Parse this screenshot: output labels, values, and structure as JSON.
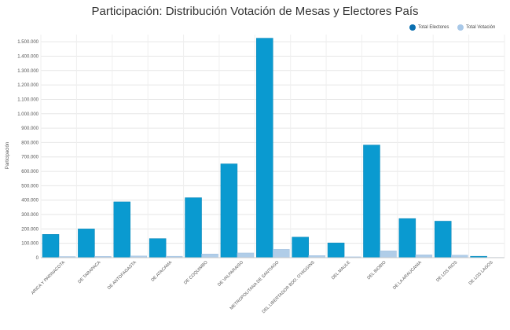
{
  "chart_data": {
    "type": "bar",
    "title": "Participación: Distribución Votación de Mesas y Electores País",
    "xlabel": "",
    "ylabel": "Participación",
    "ylim": [
      0,
      1550000
    ],
    "yticks": [
      0,
      100000,
      200000,
      300000,
      400000,
      500000,
      600000,
      700000,
      800000,
      900000,
      1000000,
      1100000,
      1200000,
      1300000,
      1400000,
      1500000
    ],
    "ytick_labels": [
      "0",
      "100.000",
      "200.000",
      "300.000",
      "400.000",
      "500.000",
      "600.000",
      "700.000",
      "800.000",
      "900.000",
      "1.000.000",
      "1.100.000",
      "1.200.000",
      "1.300.000",
      "1.400.000",
      "1.500.000"
    ],
    "legend_position": "top-right",
    "categories": [
      "ARICA Y PARINACOTA",
      "DE TARAPACA",
      "DE ANTOFAGASTA",
      "DE ATACAMA",
      "DE COQUIMBO",
      "DE VALPARAISO",
      "METROPOLITANA DE SANTIAGO",
      "DEL LIBERTADOR BDO. O'HIGGINS",
      "DEL MAULE",
      "DEL BIOBIO",
      "DE LA ARAUCANIA",
      "DE LOS RIOS",
      "DE LOS LAGOS"
    ],
    "series": [
      {
        "name": "Total Electores",
        "color": "#0a9ad0",
        "values": [
          162000,
          200000,
          388000,
          133000,
          417000,
          652000,
          1525000,
          143000,
          103000,
          783000,
          272000,
          254000,
          10000
        ]
      },
      {
        "name": "Total Votación",
        "color": "#b0cde8",
        "values": [
          8000,
          9000,
          12000,
          10000,
          26000,
          33000,
          58000,
          15000,
          6000,
          48000,
          20000,
          18000,
          2000
        ]
      }
    ]
  }
}
